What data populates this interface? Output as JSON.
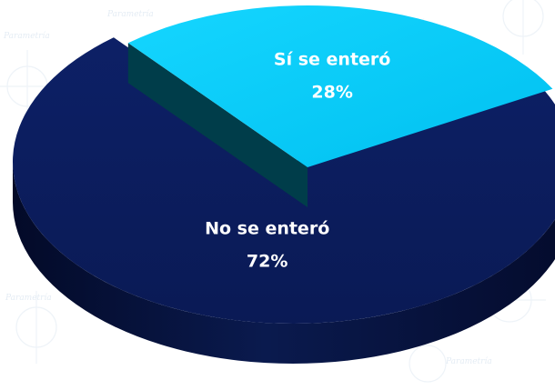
{
  "chart_data": {
    "type": "pie",
    "title": "",
    "categories": [
      "No se enteró",
      "Sí se enteró"
    ],
    "values": [
      72,
      28
    ],
    "labels": [
      {
        "name": "No se enteró",
        "value_text": "72%"
      },
      {
        "name": "Sí se enteró",
        "value_text": "28%"
      }
    ],
    "colors": {
      "No se enteró": "#0b1c5a",
      "Sí se enteró": "#00c8f5"
    },
    "side_colors": {
      "No se enteró": "#061038",
      "Sí se enteró": "#00505e"
    },
    "style": "3d-exploded",
    "legend": "none"
  },
  "watermark": {
    "text": "Parametría"
  }
}
